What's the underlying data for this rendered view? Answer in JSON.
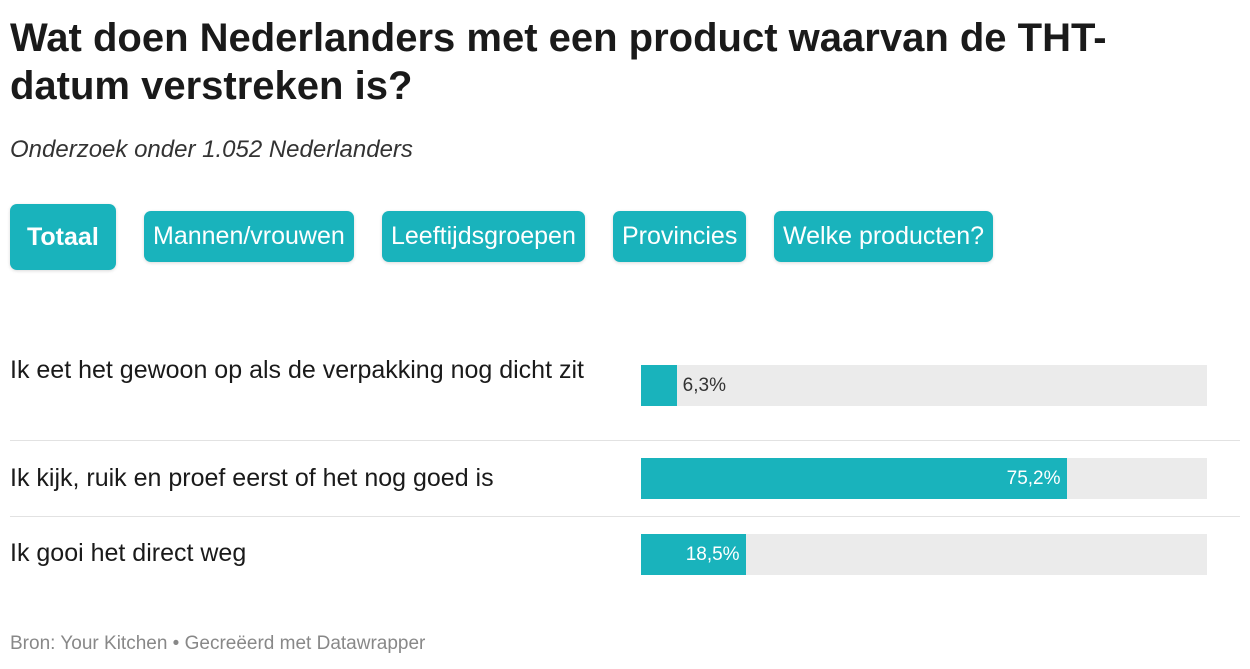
{
  "header": {
    "title": "Wat doen Nederlanders met een product waarvan de THT-datum verstreken is?",
    "subtitle": "Onderzoek onder 1.052 Nederlanders"
  },
  "tabs": {
    "items": [
      "Totaal",
      "Mannen/vrouwen",
      "Leeftijdsgroepen",
      "Provincies",
      "Welke producten?"
    ],
    "selected": 0
  },
  "chart_data": {
    "type": "bar",
    "orientation": "horizontal",
    "categories": [
      "Ik eet het gewoon op als de verpakking nog dicht zit",
      "Ik kijk, ruik en proef eerst of het nog goed is",
      "Ik gooi het direct weg"
    ],
    "values": [
      6.3,
      75.2,
      18.5
    ],
    "value_labels": [
      "6,3%",
      "75,2%",
      "18,5%"
    ],
    "color": "#19b3bc",
    "track_color": "#ebebeb",
    "xlim": [
      0,
      100
    ]
  },
  "footer": {
    "text": "Bron: Your Kitchen • Gecreëerd met Datawrapper"
  }
}
